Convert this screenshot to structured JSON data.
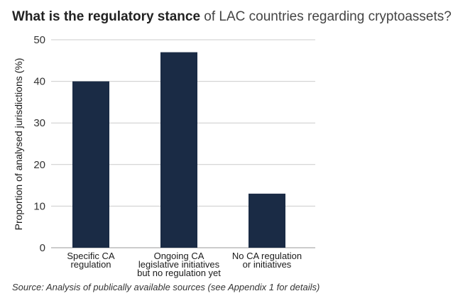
{
  "title": {
    "bold": "What is the regulatory stance",
    "rest": " of LAC countries regarding cryptoassets?"
  },
  "source": "Source: Analysis of publically available sources (see Appendix 1 for details)",
  "colors": {
    "bar": "#1a2b45",
    "grid": "#cccccc",
    "axis": "#999999"
  },
  "chart_data": {
    "type": "bar",
    "categories": [
      [
        "Specific CA",
        "regulation"
      ],
      [
        "Ongoing CA",
        "legislative initiatives",
        "but no regulation yet"
      ],
      [
        "No CA regulation",
        "or initiatives"
      ]
    ],
    "values": [
      40,
      47,
      13
    ],
    "ylabel": "Proportion of analysed jurisdictions (%)",
    "ylim": [
      0,
      50
    ],
    "yticks": [
      0,
      10,
      20,
      30,
      40,
      50
    ],
    "grid": true
  }
}
